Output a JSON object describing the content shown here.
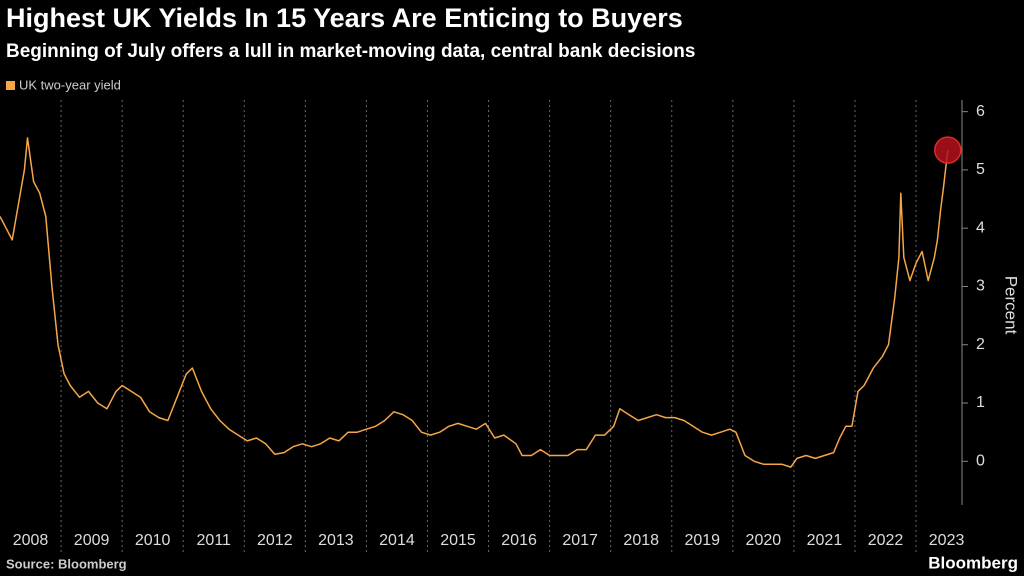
{
  "chart_data": {
    "type": "line",
    "title": "Highest UK Yields In 15 Years Are Enticing to Buyers",
    "subtitle": "Beginning of July offers a lull in market-moving data, central bank decisions",
    "y_label": "Percent",
    "source": "Source: Bloomberg",
    "logo": "Bloomberg",
    "grid": true,
    "legend": "top-left",
    "x": [
      2008.0,
      2008.1,
      2008.2,
      2008.3,
      2008.4,
      2008.45,
      2008.55,
      2008.65,
      2008.75,
      2008.85,
      2008.95,
      2009.05,
      2009.15,
      2009.3,
      2009.45,
      2009.6,
      2009.75,
      2009.9,
      2010.0,
      2010.15,
      2010.3,
      2010.45,
      2010.6,
      2010.75,
      2010.9,
      2011.05,
      2011.15,
      2011.3,
      2011.45,
      2011.6,
      2011.75,
      2011.9,
      2012.05,
      2012.2,
      2012.35,
      2012.5,
      2012.65,
      2012.8,
      2012.95,
      2013.1,
      2013.25,
      2013.4,
      2013.55,
      2013.7,
      2013.85,
      2014.0,
      2014.15,
      2014.3,
      2014.45,
      2014.6,
      2014.75,
      2014.9,
      2015.05,
      2015.2,
      2015.35,
      2015.5,
      2015.65,
      2015.8,
      2015.95,
      2016.1,
      2016.25,
      2016.45,
      2016.55,
      2016.7,
      2016.85,
      2017.0,
      2017.15,
      2017.3,
      2017.45,
      2017.6,
      2017.75,
      2017.9,
      2018.05,
      2018.15,
      2018.3,
      2018.45,
      2018.6,
      2018.75,
      2018.9,
      2019.05,
      2019.2,
      2019.35,
      2019.5,
      2019.65,
      2019.8,
      2019.95,
      2020.05,
      2020.2,
      2020.35,
      2020.5,
      2020.65,
      2020.8,
      2020.95,
      2021.05,
      2021.2,
      2021.35,
      2021.5,
      2021.65,
      2021.75,
      2021.85,
      2021.95,
      2022.05,
      2022.15,
      2022.3,
      2022.45,
      2022.55,
      2022.65,
      2022.72,
      2022.75,
      2022.8,
      2022.9,
      2023.0,
      2023.1,
      2023.2,
      2023.3,
      2023.35,
      2023.4,
      2023.45,
      2023.52
    ],
    "series": [
      {
        "name": "UK two-year yield",
        "color": "#f5a646",
        "values": [
          4.2,
          4.0,
          3.8,
          4.4,
          5.0,
          5.55,
          4.8,
          4.6,
          4.2,
          3.0,
          2.0,
          1.5,
          1.3,
          1.1,
          1.2,
          1.0,
          0.9,
          1.2,
          1.3,
          1.2,
          1.1,
          0.85,
          0.75,
          0.7,
          1.1,
          1.5,
          1.6,
          1.2,
          0.9,
          0.7,
          0.55,
          0.45,
          0.35,
          0.4,
          0.3,
          0.12,
          0.15,
          0.25,
          0.3,
          0.25,
          0.3,
          0.4,
          0.35,
          0.5,
          0.5,
          0.55,
          0.6,
          0.7,
          0.85,
          0.8,
          0.7,
          0.5,
          0.45,
          0.5,
          0.6,
          0.65,
          0.6,
          0.55,
          0.65,
          0.4,
          0.45,
          0.3,
          0.1,
          0.1,
          0.2,
          0.1,
          0.1,
          0.1,
          0.2,
          0.2,
          0.45,
          0.45,
          0.6,
          0.9,
          0.8,
          0.7,
          0.75,
          0.8,
          0.75,
          0.75,
          0.7,
          0.6,
          0.5,
          0.45,
          0.5,
          0.55,
          0.5,
          0.1,
          0.0,
          -0.05,
          -0.05,
          -0.05,
          -0.1,
          0.05,
          0.1,
          0.05,
          0.1,
          0.15,
          0.4,
          0.6,
          0.6,
          1.2,
          1.3,
          1.6,
          1.8,
          2.0,
          2.8,
          3.5,
          4.6,
          3.5,
          3.1,
          3.4,
          3.6,
          3.1,
          3.5,
          3.8,
          4.3,
          4.7,
          5.34
        ]
      }
    ],
    "xlim": [
      2008,
      2023.72
    ],
    "xticks": [
      2008,
      2009,
      2010,
      2011,
      2012,
      2013,
      2014,
      2015,
      2016,
      2017,
      2018,
      2019,
      2020,
      2021,
      2022,
      2023
    ],
    "ylim": [
      -0.75,
      6.2
    ],
    "yticks": [
      0,
      1,
      2,
      3,
      4,
      5,
      6
    ]
  }
}
